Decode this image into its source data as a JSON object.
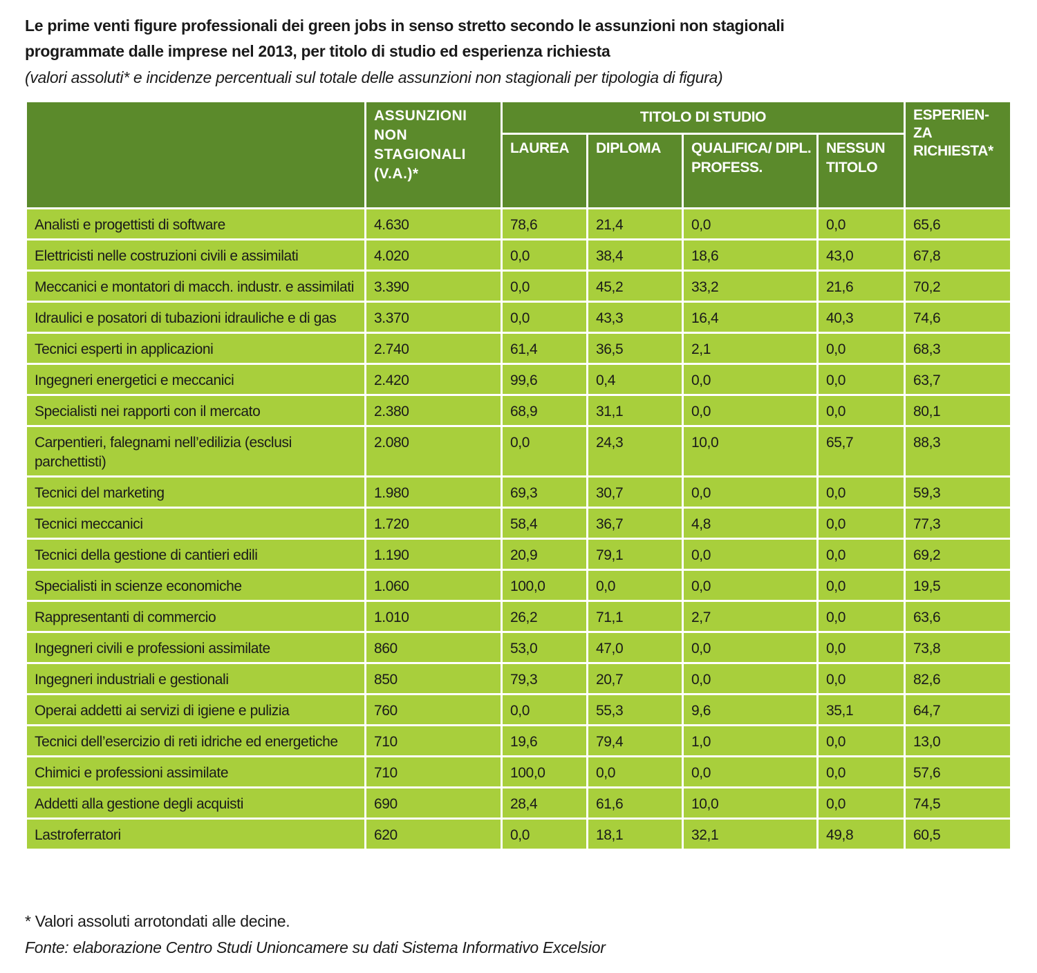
{
  "title_line1": "Le prime venti figure professionali dei green jobs in senso stretto secondo le assunzioni non stagionali",
  "title_line2": "programmate dalle imprese nel 2013, per titolo di studio ed esperienza richiesta",
  "subtitle": "(valori assoluti* e incidenze percentuali sul totale delle assunzioni non stagionali per tipologia di figura)",
  "colors": {
    "header": "#5b8a2b",
    "row": "#a8cf3c"
  },
  "headers": {
    "assunzioni": "ASSUNZIONI NON STAGIONALI (V.A.)*",
    "titolo_group": "TITOLO DI STUDIO",
    "laurea": "LAUREA",
    "diploma": "DIPLOMA",
    "qualifica": "QUALIFICA/ DIPL. PROFESS.",
    "nessun": "NESSUN TITOLO",
    "esperienza": "ESPERIEN- ZA RICHIESTA*"
  },
  "rows": [
    [
      "Analisti e progettisti di software",
      "4.630",
      "78,6",
      "21,4",
      "0,0",
      "0,0",
      "65,6"
    ],
    [
      "Elettricisti nelle costruzioni civili e assimilati",
      "4.020",
      "0,0",
      "38,4",
      "18,6",
      "43,0",
      "67,8"
    ],
    [
      "Meccanici e montatori di macch. industr. e assimilati",
      "3.390",
      "0,0",
      "45,2",
      "33,2",
      "21,6",
      "70,2"
    ],
    [
      "Idraulici e posatori di tubazioni idrauliche e di gas",
      "3.370",
      "0,0",
      "43,3",
      "16,4",
      "40,3",
      "74,6"
    ],
    [
      "Tecnici esperti in applicazioni",
      "2.740",
      "61,4",
      "36,5",
      "2,1",
      "0,0",
      "68,3"
    ],
    [
      "Ingegneri energetici e meccanici",
      "2.420",
      "99,6",
      "0,4",
      "0,0",
      "0,0",
      "63,7"
    ],
    [
      "Specialisti nei rapporti con il mercato",
      "2.380",
      "68,9",
      "31,1",
      "0,0",
      "0,0",
      "80,1"
    ],
    [
      "Carpentieri, falegnami nell’edilizia (esclusi parchettisti)",
      "2.080",
      "0,0",
      "24,3",
      "10,0",
      "65,7",
      "88,3"
    ],
    [
      "Tecnici del marketing",
      "1.980",
      "69,3",
      "30,7",
      "0,0",
      "0,0",
      "59,3"
    ],
    [
      "Tecnici meccanici",
      "1.720",
      "58,4",
      "36,7",
      "4,8",
      "0,0",
      "77,3"
    ],
    [
      "Tecnici della gestione di cantieri edili",
      "1.190",
      "20,9",
      "79,1",
      "0,0",
      "0,0",
      "69,2"
    ],
    [
      "Specialisti in scienze economiche",
      "1.060",
      "100,0",
      "0,0",
      "0,0",
      "0,0",
      "19,5"
    ],
    [
      "Rappresentanti di commercio",
      "1.010",
      "26,2",
      "71,1",
      "2,7",
      "0,0",
      "63,6"
    ],
    [
      "Ingegneri civili e professioni assimilate",
      "860",
      "53,0",
      "47,0",
      "0,0",
      "0,0",
      "73,8"
    ],
    [
      "Ingegneri industriali e gestionali",
      "850",
      "79,3",
      "20,7",
      "0,0",
      "0,0",
      "82,6"
    ],
    [
      "Operai addetti ai servizi di igiene e pulizia",
      "760",
      "0,0",
      "55,3",
      "9,6",
      "35,1",
      "64,7"
    ],
    [
      "Tecnici dell’esercizio di reti idriche ed energetiche",
      "710",
      "19,6",
      "79,4",
      "1,0",
      "0,0",
      "13,0"
    ],
    [
      "Chimici e professioni assimilate",
      "710",
      "100,0",
      "0,0",
      "0,0",
      "0,0",
      "57,6"
    ],
    [
      "Addetti alla gestione degli acquisti",
      "690",
      "28,4",
      "61,6",
      "10,0",
      "0,0",
      "74,5"
    ],
    [
      "Lastroferratori",
      "620",
      "0,0",
      "18,1",
      "32,1",
      "49,8",
      "60,5"
    ]
  ],
  "footnote": "* Valori assoluti arrotondati alle decine.",
  "source": "Fonte: elaborazione Centro Studi Unioncamere su dati Sistema Informativo Excelsior"
}
